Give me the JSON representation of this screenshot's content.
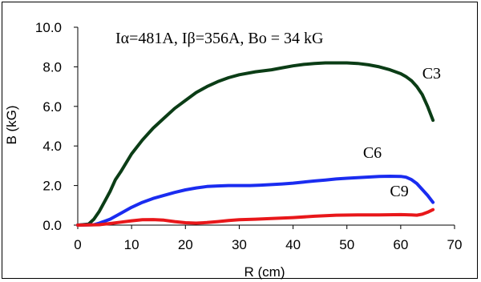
{
  "chart_data": {
    "type": "line",
    "title": "",
    "annotation": "Iα=481A, Iβ=356A, Bo = 34 kG",
    "xlabel": "R (cm)",
    "ylabel": "B (kG)",
    "xlim": [
      0,
      70
    ],
    "ylim": [
      0,
      10
    ],
    "x_ticks": [
      "0",
      "10",
      "20",
      "30",
      "40",
      "50",
      "60",
      "70"
    ],
    "y_ticks": [
      "0.0",
      "2.0",
      "4.0",
      "6.0",
      "8.0",
      "10.0"
    ],
    "grid": false,
    "legend": "none",
    "series": [
      {
        "name": "C3",
        "color": "#0b3d16",
        "x": [
          0,
          2,
          3,
          4,
          5,
          6,
          7,
          8,
          10,
          12,
          14,
          16,
          18,
          20,
          22,
          24,
          26,
          28,
          30,
          33,
          36,
          38,
          40,
          42,
          44,
          46,
          48,
          50,
          52,
          54,
          56,
          58,
          60,
          61,
          62,
          63,
          64,
          65,
          66
        ],
        "y": [
          0,
          0.05,
          0.3,
          0.7,
          1.2,
          1.7,
          2.3,
          2.7,
          3.6,
          4.3,
          4.9,
          5.4,
          5.9,
          6.3,
          6.7,
          7.0,
          7.25,
          7.45,
          7.6,
          7.75,
          7.85,
          7.95,
          8.05,
          8.12,
          8.17,
          8.2,
          8.2,
          8.2,
          8.17,
          8.1,
          8.0,
          7.85,
          7.65,
          7.5,
          7.3,
          7.0,
          6.6,
          6.0,
          5.3
        ]
      },
      {
        "name": "C6",
        "color": "#1a2cf0",
        "x": [
          0,
          3,
          4,
          5,
          6,
          8,
          10,
          12,
          14,
          16,
          18,
          20,
          22,
          24,
          26,
          28,
          30,
          32,
          34,
          36,
          38,
          40,
          42,
          44,
          46,
          48,
          50,
          52,
          54,
          56,
          58,
          60,
          61,
          62,
          63,
          64,
          65,
          66
        ],
        "y": [
          0,
          0.02,
          0.1,
          0.2,
          0.3,
          0.6,
          0.9,
          1.15,
          1.35,
          1.5,
          1.65,
          1.78,
          1.88,
          1.95,
          1.98,
          2.0,
          2.0,
          2.0,
          2.02,
          2.05,
          2.08,
          2.12,
          2.18,
          2.23,
          2.28,
          2.33,
          2.37,
          2.4,
          2.43,
          2.46,
          2.47,
          2.46,
          2.42,
          2.3,
          2.1,
          1.8,
          1.5,
          1.15
        ]
      },
      {
        "name": "C9",
        "color": "#e8171a",
        "x": [
          0,
          4,
          6,
          8,
          10,
          12,
          14,
          16,
          18,
          20,
          22,
          24,
          26,
          28,
          30,
          33,
          36,
          40,
          44,
          48,
          52,
          56,
          60,
          62,
          63,
          64,
          65,
          66
        ],
        "y": [
          0,
          0.02,
          0.08,
          0.15,
          0.22,
          0.27,
          0.28,
          0.25,
          0.18,
          0.12,
          0.1,
          0.13,
          0.18,
          0.23,
          0.27,
          0.3,
          0.33,
          0.38,
          0.45,
          0.5,
          0.52,
          0.52,
          0.53,
          0.52,
          0.5,
          0.55,
          0.65,
          0.78
        ]
      }
    ],
    "series_labels": [
      {
        "text": "C3",
        "x": 64,
        "y": 7.4
      },
      {
        "text": "C6",
        "x": 53,
        "y": 3.4
      },
      {
        "text": "C9",
        "x": 58,
        "y": 1.45
      }
    ]
  }
}
